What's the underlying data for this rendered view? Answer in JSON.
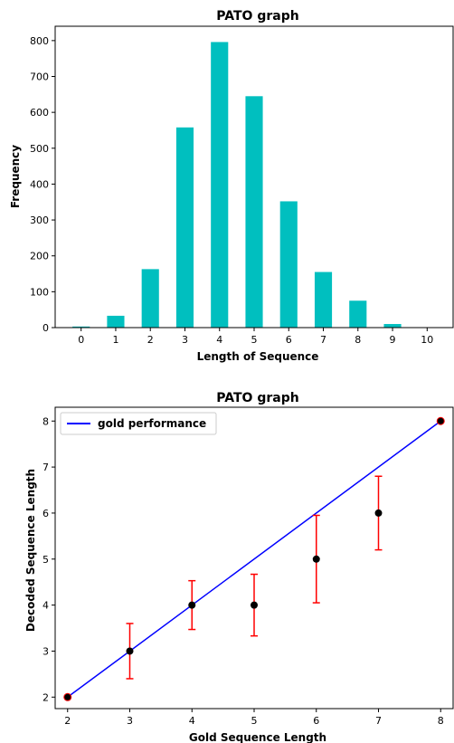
{
  "chart_data": [
    {
      "type": "bar",
      "title": "PATO graph",
      "xlabel": "Length of Sequence",
      "ylabel": "Frequency",
      "categories": [
        "0",
        "1",
        "2",
        "3",
        "4",
        "5",
        "6",
        "7",
        "8",
        "9",
        "10"
      ],
      "values": [
        3,
        33,
        163,
        558,
        796,
        645,
        352,
        155,
        75,
        10,
        0
      ],
      "ylim": [
        0,
        840
      ],
      "yticks": [
        0,
        100,
        200,
        300,
        400,
        500,
        600,
        700,
        800
      ],
      "bar_color": "#00bfbf",
      "grid": false
    },
    {
      "type": "line",
      "title": "PATO graph",
      "xlabel": "Gold Sequence Length",
      "ylabel": "Decoded Sequence Length",
      "xlim": [
        1.8,
        8.2
      ],
      "ylim": [
        1.75,
        8.3
      ],
      "xticks": [
        2,
        3,
        4,
        5,
        6,
        7,
        8
      ],
      "yticks": [
        2,
        3,
        4,
        5,
        6,
        7,
        8
      ],
      "legend_position": "top-left",
      "series": [
        {
          "name": "gold performance",
          "kind": "line",
          "color": "#0000ff",
          "x": [
            2,
            8
          ],
          "y": [
            2,
            8
          ]
        },
        {
          "kind": "errorbar",
          "marker_color": "#000000",
          "error_color": "#ff0000",
          "x": [
            2,
            3,
            4,
            5,
            6,
            7,
            8
          ],
          "y": [
            2,
            3,
            4,
            4,
            5,
            6,
            8
          ],
          "yerr": [
            0,
            0.6,
            0.53,
            0.67,
            0.95,
            0.8,
            0
          ]
        }
      ],
      "grid": false
    }
  ]
}
